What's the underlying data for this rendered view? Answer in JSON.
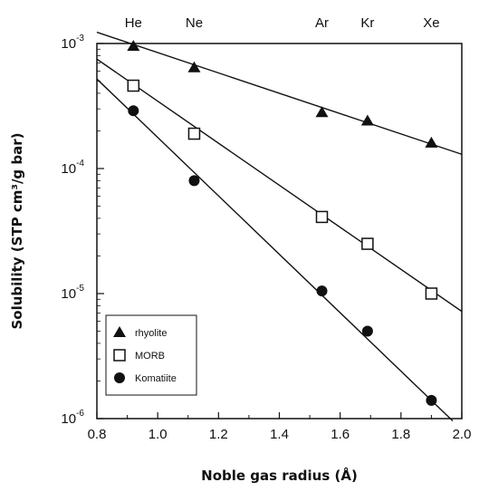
{
  "chart_data": {
    "type": "scatter",
    "xlabel": "Noble gas radius (Å)",
    "ylabel": "Solubility (STP cm³/g bar)",
    "xlim": [
      0.8,
      2.0
    ],
    "ylim": [
      1e-06,
      0.001
    ],
    "yscale": "log",
    "grid": false,
    "legend_position": "bottom-left",
    "x_ticks": [
      "0.8",
      "1.0",
      "1.2",
      "1.4",
      "1.6",
      "1.8",
      "2.0"
    ],
    "y_ticks": [
      {
        "base": "10",
        "exp": "-3",
        "value": 0.001
      },
      {
        "base": "10",
        "exp": "-4",
        "value": 0.0001
      },
      {
        "base": "10",
        "exp": "-5",
        "value": 1e-05
      },
      {
        "base": "10",
        "exp": "-6",
        "value": 1e-06
      }
    ],
    "top_labels": [
      {
        "label": "He",
        "x": 0.92
      },
      {
        "label": "Ne",
        "x": 1.12
      },
      {
        "label": "Ar",
        "x": 1.54
      },
      {
        "label": "Kr",
        "x": 1.69
      },
      {
        "label": "Xe",
        "x": 1.9
      }
    ],
    "series": [
      {
        "name": "rhyolite",
        "marker": "triangle-filled",
        "x": [
          0.92,
          1.12,
          1.54,
          1.69,
          1.9
        ],
        "y": [
          0.00095,
          0.00064,
          0.00028,
          0.00024,
          0.00016
        ],
        "fit": {
          "x": [
            0.8,
            2.0
          ],
          "y": [
            0.00123,
            0.00013
          ]
        }
      },
      {
        "name": "MORB",
        "marker": "square-open",
        "x": [
          0.92,
          1.12,
          1.54,
          1.69,
          1.9
        ],
        "y": [
          0.00046,
          0.00019,
          4.1e-05,
          2.5e-05,
          1e-05
        ],
        "fit": {
          "x": [
            0.8,
            2.0
          ],
          "y": [
            0.00075,
            7.2e-06
          ]
        }
      },
      {
        "name": "Komatiite",
        "marker": "circle-filled",
        "x": [
          0.92,
          1.12,
          1.54,
          1.69,
          1.9
        ],
        "y": [
          0.00029,
          8e-05,
          1.05e-05,
          5e-06,
          1.4e-06
        ],
        "fit": {
          "x": [
            0.8,
            1.97
          ],
          "y": [
            0.00052,
            9.6e-07
          ]
        }
      }
    ]
  }
}
